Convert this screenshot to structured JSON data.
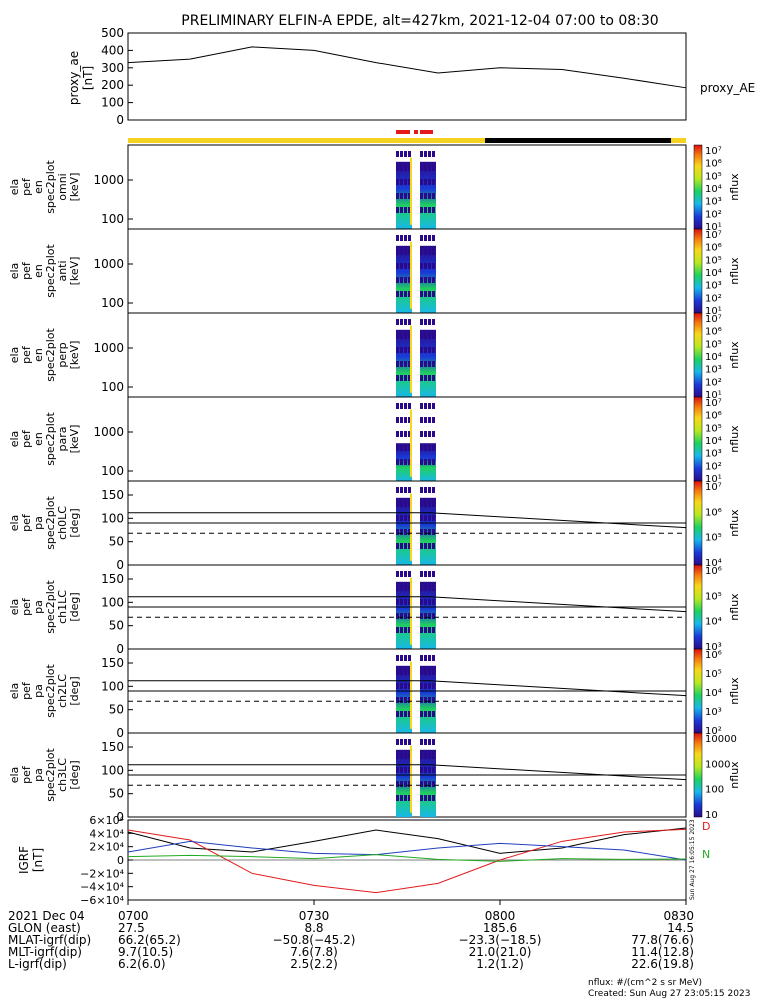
{
  "title": "PRELIMINARY ELFIN-A EPDE, alt=427km, 2021-12-04 07:00 to 08:30",
  "colors": {
    "yellow": "#f4d21f",
    "black": "#000000",
    "red": "#e31a1c",
    "blue": "#1f3fbf",
    "green": "#22aa22"
  },
  "ae_panel": {
    "ylabel": [
      "proxy_ae",
      "[nT]"
    ],
    "right_label": "proxy_AE",
    "yticks": [
      "500",
      "400",
      "300",
      "200",
      "100",
      "0"
    ]
  },
  "energy_panels": [
    {
      "ylabel": [
        "ela",
        "pef",
        "en",
        "spec2plot",
        "omni",
        "[keV]"
      ],
      "yticks": [
        "1000",
        "100"
      ],
      "cbar_ticks": [
        "10⁷",
        "10⁶",
        "10⁵",
        "10⁴",
        "10³",
        "10²",
        "10¹"
      ],
      "cbar_label": "nflux"
    },
    {
      "ylabel": [
        "ela",
        "pef",
        "en",
        "spec2plot",
        "anti",
        "[keV]"
      ],
      "yticks": [
        "1000",
        "100"
      ],
      "cbar_ticks": [
        "10⁷",
        "10⁶",
        "10⁵",
        "10⁴",
        "10³",
        "10²",
        "10¹"
      ],
      "cbar_label": "nflux"
    },
    {
      "ylabel": [
        "ela",
        "pef",
        "en",
        "spec2plot",
        "perp",
        "[keV]"
      ],
      "yticks": [
        "1000",
        "100"
      ],
      "cbar_ticks": [
        "10⁷",
        "10⁶",
        "10⁵",
        "10⁴",
        "10³",
        "10²",
        "10¹"
      ],
      "cbar_label": "nflux"
    },
    {
      "ylabel": [
        "ela",
        "pef",
        "en",
        "spec2plot",
        "para",
        "[keV]"
      ],
      "yticks": [
        "1000",
        "100"
      ],
      "cbar_ticks": [
        "10⁷",
        "10⁶",
        "10⁵",
        "10⁴",
        "10³",
        "10²",
        "10¹"
      ],
      "cbar_label": "nflux"
    }
  ],
  "pa_panels": [
    {
      "ylabel": [
        "ela",
        "pef",
        "pa",
        "spec2plot",
        "ch0LC",
        "[deg]"
      ],
      "yticks": [
        "150",
        "100",
        "50",
        "0"
      ],
      "cbar_ticks": [
        "10⁷",
        "10⁶",
        "10⁵",
        "10⁴"
      ],
      "cbar_label": "nflux"
    },
    {
      "ylabel": [
        "ela",
        "pef",
        "pa",
        "spec2plot",
        "ch1LC",
        "[deg]"
      ],
      "yticks": [
        "150",
        "100",
        "50",
        "0"
      ],
      "cbar_ticks": [
        "10⁶",
        "10⁵",
        "10⁴",
        "10³"
      ],
      "cbar_label": "nflux"
    },
    {
      "ylabel": [
        "ela",
        "pef",
        "pa",
        "spec2plot",
        "ch2LC",
        "[deg]"
      ],
      "yticks": [
        "150",
        "100",
        "50",
        "0"
      ],
      "cbar_ticks": [
        "10⁶",
        "10⁵",
        "10⁴",
        "10³",
        "10²"
      ],
      "cbar_label": "nflux"
    },
    {
      "ylabel": [
        "ela",
        "pef",
        "pa",
        "spec2plot",
        "ch3LC",
        "[deg]"
      ],
      "yticks": [
        "150",
        "100",
        "50",
        "0"
      ],
      "cbar_ticks": [
        "10000",
        "1000",
        "100",
        "10"
      ],
      "cbar_label": "nflux"
    }
  ],
  "igrf_panel": {
    "ylabel": [
      "IGRF",
      "[nT]"
    ],
    "yticks": [
      "6×10⁴",
      "4×10⁴",
      "2×10⁴",
      "0",
      "−2×10⁴",
      "−4×10⁴",
      "−6×10⁴"
    ],
    "legend": [
      "D",
      "N"
    ],
    "side_stamp": "Sun Aug 27 16:05:15 2023"
  },
  "xaxis": {
    "rows": [
      {
        "label": "2021 Dec 04",
        "values": [
          "0700",
          "0730",
          "0800",
          "0830"
        ]
      },
      {
        "label": "GLON (east)",
        "values": [
          "27.5",
          "8.8",
          "185.6",
          "14.5"
        ]
      },
      {
        "label": "MLAT-igrf(dip)",
        "values": [
          "66.2(65.2)",
          "−50.8(−45.2)",
          "−23.3(−18.5)",
          "77.8(76.6)"
        ]
      },
      {
        "label": "MLT-igrf(dip)",
        "values": [
          "9.7(10.5)",
          "7.6(7.8)",
          "21.0(21.0)",
          "11.4(12.8)"
        ]
      },
      {
        "label": "L-igrf(dip)",
        "values": [
          "6.2(6.0)",
          "2.5(2.2)",
          "1.2(1.2)",
          "22.6(19.8)"
        ]
      }
    ]
  },
  "footer": {
    "units": "nflux: #/(cm^2 s sr MeV)",
    "created": "Created: Sun Aug 27 23:05:15 2023"
  },
  "chart_data": {
    "type": "line",
    "title": "PRELIMINARY ELFIN-A EPDE, alt=427km, 2021-12-04 07:00 to 08:30",
    "x_time_minutes_after_0700": [
      0,
      10,
      20,
      30,
      40,
      50,
      60,
      70,
      80,
      90
    ],
    "proxy_ae_nT": [
      330,
      350,
      420,
      400,
      330,
      270,
      300,
      290,
      240,
      185
    ],
    "proxy_ae_ylim": [
      0,
      500
    ],
    "igrf_series": [
      {
        "color": "black",
        "values": [
          42000,
          18000,
          12000,
          28000,
          45000,
          32000,
          10000,
          18000,
          38000,
          48000
        ]
      },
      {
        "color": "red",
        "values": [
          45000,
          30000,
          -20000,
          -38000,
          -49000,
          -35000,
          0,
          28000,
          42000,
          46000
        ]
      },
      {
        "color": "blue",
        "values": [
          12000,
          28000,
          18000,
          10000,
          8000,
          18000,
          25000,
          20000,
          15000,
          0
        ]
      },
      {
        "color": "green",
        "values": [
          5000,
          7000,
          5000,
          2000,
          8000,
          1000,
          -2000,
          2000,
          1000,
          1500
        ]
      }
    ],
    "igrf_ylim": [
      -60000,
      60000
    ],
    "x_ticks": [
      "0700",
      "0730",
      "0800",
      "0830"
    ]
  }
}
